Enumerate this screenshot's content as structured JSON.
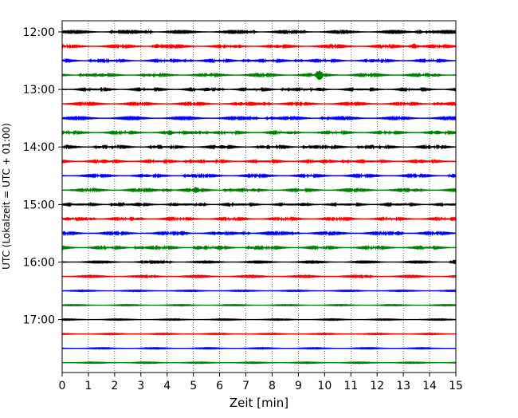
{
  "chart_data": {
    "type": "line",
    "title": "",
    "xlabel": "Zeit  [min]",
    "ylabel": "UTC (Lokalzeit = UTC + 01:00)",
    "xlim": [
      0,
      15
    ],
    "x_ticks": [
      0,
      1,
      2,
      3,
      4,
      5,
      6,
      7,
      8,
      9,
      10,
      11,
      12,
      13,
      14,
      15
    ],
    "x_tick_labels": [
      "0",
      "1",
      "2",
      "3",
      "4",
      "5",
      "6",
      "7",
      "8",
      "9",
      "10",
      "11",
      "12",
      "13",
      "14",
      "15"
    ],
    "y_tick_labels": [
      "12:00",
      "13:00",
      "14:00",
      "15:00",
      "16:00",
      "17:00"
    ],
    "grid": "vertical dotted at each minute",
    "colors": [
      "#000000",
      "#ff0000",
      "#0000ff",
      "#008000"
    ],
    "traces": [
      {
        "time": "12:00",
        "color": "#000000",
        "amplitude": 0.9,
        "events": [
          [
            2.0,
            1.2
          ],
          [
            3.3,
            1.0
          ],
          [
            7.2,
            1.3
          ],
          [
            9.1,
            1.5
          ],
          [
            13.6,
            0.9
          ],
          [
            14.0,
            1.3
          ]
        ]
      },
      {
        "time": "12:15",
        "color": "#ff0000",
        "amplitude": 1.0,
        "events": [
          [
            3.6,
            2.5
          ],
          [
            6.6,
            1.2
          ],
          [
            8.2,
            1.1
          ],
          [
            13.4,
            3.2
          ]
        ]
      },
      {
        "time": "12:30",
        "color": "#0000ff",
        "amplitude": 1.1,
        "events": [
          [
            1.2,
            1.4
          ],
          [
            4.8,
            1.2
          ],
          [
            7.0,
            1.1
          ],
          [
            9.0,
            1.3
          ],
          [
            11.8,
            1.4
          ]
        ]
      },
      {
        "time": "12:45",
        "color": "#008000",
        "amplitude": 1.0,
        "events": [
          [
            0.8,
            1.4
          ],
          [
            1.5,
            1.3
          ],
          [
            3.3,
            1.2
          ],
          [
            9.8,
            6.5
          ],
          [
            14.2,
            1.6
          ]
        ]
      },
      {
        "time": "13:00",
        "color": "#000000",
        "amplitude": 1.2,
        "events": [
          [
            5.5,
            1.4
          ],
          [
            6.0,
            1.5
          ],
          [
            8.5,
            1.4
          ],
          [
            9.8,
            1.6
          ]
        ]
      },
      {
        "time": "13:15",
        "color": "#ff0000",
        "amplitude": 1.0,
        "events": [
          [
            6.8,
            1.6
          ],
          [
            7.8,
            1.2
          ],
          [
            14.3,
            1.8
          ]
        ]
      },
      {
        "time": "13:30",
        "color": "#0000ff",
        "amplitude": 0.9,
        "events": [
          [
            7.3,
            1.3
          ],
          [
            7.9,
            1.2
          ],
          [
            10.0,
            1.1
          ]
        ]
      },
      {
        "time": "13:45",
        "color": "#008000",
        "amplitude": 1.1,
        "events": [
          [
            4.1,
            2.2
          ],
          [
            5.1,
            1.6
          ],
          [
            5.4,
            1.5
          ],
          [
            8.7,
            1.3
          ],
          [
            14.3,
            1.6
          ]
        ]
      },
      {
        "time": "14:00",
        "color": "#000000",
        "amplitude": 1.1,
        "events": [
          [
            1.4,
            1.2
          ],
          [
            3.5,
            1.2
          ],
          [
            6.1,
            1.5
          ],
          [
            7.6,
            1.4
          ],
          [
            9.3,
            1.3
          ],
          [
            11.4,
            1.4
          ]
        ]
      },
      {
        "time": "14:15",
        "color": "#ff0000",
        "amplitude": 1.2,
        "events": [
          [
            1.6,
            1.3
          ],
          [
            4.8,
            1.3
          ],
          [
            10.0,
            1.8
          ],
          [
            10.8,
            1.4
          ],
          [
            13.7,
            1.3
          ]
        ]
      },
      {
        "time": "14:30",
        "color": "#0000ff",
        "amplitude": 1.0,
        "events": [
          [
            3.2,
            1.3
          ],
          [
            4.8,
            1.6
          ],
          [
            14.9,
            2.2
          ]
        ]
      },
      {
        "time": "14:45",
        "color": "#008000",
        "amplitude": 1.0,
        "events": [
          [
            4.0,
            2.1
          ],
          [
            5.1,
            3.0
          ],
          [
            6.3,
            1.3
          ],
          [
            7.3,
            1.2
          ],
          [
            13.5,
            1.6
          ]
        ]
      },
      {
        "time": "15:00",
        "color": "#000000",
        "amplitude": 1.3,
        "events": [
          [
            2.0,
            1.7
          ],
          [
            2.9,
            1.5
          ],
          [
            4.3,
            1.4
          ],
          [
            5.3,
            1.3
          ],
          [
            9.2,
            1.4
          ]
        ]
      },
      {
        "time": "15:15",
        "color": "#ff0000",
        "amplitude": 1.1,
        "events": [
          [
            0.2,
            1.4
          ],
          [
            1.1,
            1.5
          ],
          [
            2.9,
            1.3
          ]
        ]
      },
      {
        "time": "15:30",
        "color": "#0000ff",
        "amplitude": 1.0,
        "events": [
          [
            4.6,
            2.4
          ],
          [
            6.0,
            1.4
          ],
          [
            7.0,
            1.2
          ],
          [
            8.9,
            1.1
          ],
          [
            12.8,
            2.4
          ]
        ]
      },
      {
        "time": "15:45",
        "color": "#008000",
        "amplitude": 1.1,
        "events": [
          [
            2.9,
            1.6
          ],
          [
            5.2,
            2.4
          ],
          [
            6.0,
            2.0
          ],
          [
            7.2,
            1.3
          ]
        ]
      },
      {
        "time": "16:00",
        "color": "#000000",
        "amplitude": 0.7,
        "events": [
          [
            3.2,
            1.4
          ],
          [
            4.0,
            1.2
          ],
          [
            14.95,
            2.8
          ]
        ]
      },
      {
        "time": "16:15",
        "color": "#ff0000",
        "amplitude": 0.7,
        "events": [
          [
            3.4,
            1.1
          ],
          [
            11.6,
            1.5
          ]
        ]
      },
      {
        "time": "16:30",
        "color": "#0000ff",
        "amplitude": 0.5,
        "events": []
      },
      {
        "time": "16:45",
        "color": "#008000",
        "amplitude": 0.5,
        "events": []
      },
      {
        "time": "17:00",
        "color": "#000000",
        "amplitude": 0.5,
        "events": []
      },
      {
        "time": "17:15",
        "color": "#ff0000",
        "amplitude": 0.5,
        "events": []
      },
      {
        "time": "17:30",
        "color": "#0000ff",
        "amplitude": 0.5,
        "events": []
      },
      {
        "time": "17:45",
        "color": "#008000",
        "amplitude": 0.5,
        "events": []
      }
    ]
  }
}
